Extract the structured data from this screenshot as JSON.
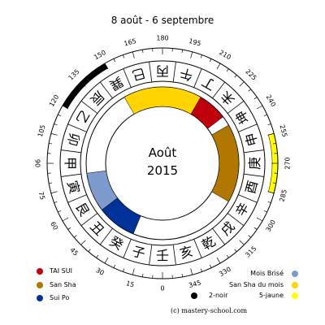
{
  "title": "8 août - 6 septembre",
  "center": {
    "month": "Août",
    "year": "2015"
  },
  "degree_labels": [
    {
      "deg": 0,
      "label": "0"
    },
    {
      "deg": 15,
      "label": "15"
    },
    {
      "deg": 30,
      "label": "30"
    },
    {
      "deg": 45,
      "label": "45"
    },
    {
      "deg": 60,
      "label": "60"
    },
    {
      "deg": 75,
      "label": "75"
    },
    {
      "deg": 90,
      "label": "90"
    },
    {
      "deg": 105,
      "label": "105"
    },
    {
      "deg": 120,
      "label": "120"
    },
    {
      "deg": 135,
      "label": "135"
    },
    {
      "deg": 150,
      "label": "150"
    },
    {
      "deg": 165,
      "label": "165"
    },
    {
      "deg": 180,
      "label": "180"
    },
    {
      "deg": 195,
      "label": "195"
    },
    {
      "deg": 210,
      "label": "210"
    },
    {
      "deg": 225,
      "label": "225"
    },
    {
      "deg": 240,
      "label": "240"
    },
    {
      "deg": 255,
      "label": "255"
    },
    {
      "deg": 270,
      "label": "270"
    },
    {
      "deg": 285,
      "label": "285"
    },
    {
      "deg": 300,
      "label": "300"
    },
    {
      "deg": 315,
      "label": "315"
    },
    {
      "deg": 330,
      "label": "330"
    },
    {
      "deg": 345,
      "label": "345"
    }
  ],
  "mountains": [
    "壬",
    "子",
    "癸",
    "丑",
    "艮",
    "寅",
    "甲",
    "卯",
    "乙",
    "辰",
    "巽",
    "巳",
    "丙",
    "午",
    "丁",
    "未",
    "坤",
    "申",
    "庚",
    "酉",
    "辛",
    "戌",
    "乾",
    "亥"
  ],
  "outer_arcs": [
    {
      "name": "2-noir",
      "start": 120,
      "end": 150,
      "color": "#000000"
    },
    {
      "name": "5-jaune",
      "start": 255,
      "end": 285,
      "color": "#ffff00"
    }
  ],
  "inner_sectors": [
    {
      "name": "TAI SUI",
      "start": 202.5,
      "end": 232.5,
      "color": "#c0000a"
    },
    {
      "name": "San Sha",
      "start": 240,
      "end": 300,
      "color": "#b07800"
    },
    {
      "name": "Sui Po",
      "start": 22.5,
      "end": 52.5,
      "color": "#003399"
    },
    {
      "name": "Mois Brisé",
      "start": 52.5,
      "end": 82.5,
      "color": "#7f9acc"
    },
    {
      "name": "San Sha du mois",
      "start": 150,
      "end": 210,
      "color": "#ffd400"
    }
  ],
  "legend_left": [
    {
      "label": "TAI SUI",
      "color": "#c0000a"
    },
    {
      "label": "San Sha",
      "color": "#b07800"
    },
    {
      "label": "Sui Po",
      "color": "#003399"
    }
  ],
  "legend_right": [
    {
      "label": "Mois Brisé",
      "color": "#7f9acc"
    },
    {
      "label": "San Sha du mois",
      "color": "#ffd400"
    }
  ],
  "legend_bottom": [
    {
      "label": "2-noir",
      "color": "#000000"
    },
    {
      "label": "5-jaune",
      "color": "#ffff00"
    }
  ],
  "copyright": "(c) mastery-school.com"
}
